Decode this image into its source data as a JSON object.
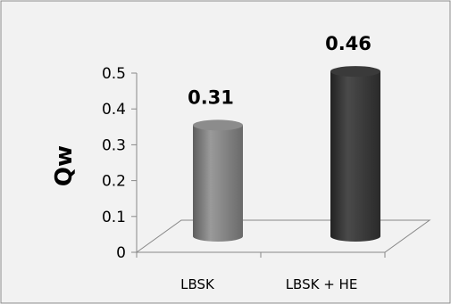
{
  "chart_data": {
    "type": "bar",
    "style": "3d-cylinder",
    "categories": [
      "LBSK",
      "LBSK + HE"
    ],
    "values": [
      0.31,
      0.46
    ],
    "data_labels": [
      "0.31",
      "0.46"
    ],
    "title": "",
    "xlabel": "",
    "ylabel": "Qw",
    "ylim": [
      0,
      0.5
    ],
    "yticks": [
      "0",
      "0.1",
      "0.2",
      "0.3",
      "0.4",
      "0.5"
    ],
    "grid": false,
    "legend": "none",
    "colors": {
      "series_bars": [
        "#7a7a7a",
        "#333333"
      ],
      "background": "#f2f2f2",
      "frame": "#888888",
      "floor": "#888888"
    }
  }
}
